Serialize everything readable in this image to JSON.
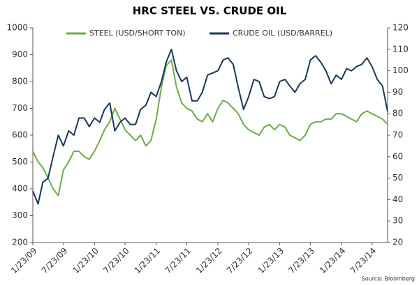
{
  "chart_data": {
    "type": "line",
    "title": "HRC STEEL VS. CRUDE OIL",
    "source": "Source: Bloomberg",
    "x": [
      "2009-01-23",
      "2009-02-23",
      "2009-03-23",
      "2009-04-23",
      "2009-05-23",
      "2009-06-23",
      "2009-07-23",
      "2009-08-23",
      "2009-09-23",
      "2009-10-23",
      "2009-11-23",
      "2009-12-23",
      "2010-01-23",
      "2010-02-23",
      "2010-03-23",
      "2010-04-23",
      "2010-05-23",
      "2010-06-23",
      "2010-07-23",
      "2010-08-23",
      "2010-09-23",
      "2010-10-23",
      "2010-11-23",
      "2010-12-23",
      "2011-01-23",
      "2011-02-23",
      "2011-03-23",
      "2011-04-23",
      "2011-05-23",
      "2011-06-23",
      "2011-07-23",
      "2011-08-23",
      "2011-09-23",
      "2011-10-23",
      "2011-11-23",
      "2011-12-23",
      "2012-01-23",
      "2012-02-23",
      "2012-03-23",
      "2012-04-23",
      "2012-05-23",
      "2012-06-23",
      "2012-07-23",
      "2012-08-23",
      "2012-09-23",
      "2012-10-23",
      "2012-11-23",
      "2012-12-23",
      "2013-01-23",
      "2013-02-23",
      "2013-03-23",
      "2013-04-23",
      "2013-05-23",
      "2013-06-23",
      "2013-07-23",
      "2013-08-23",
      "2013-09-23",
      "2013-10-23",
      "2013-11-23",
      "2013-12-23",
      "2014-01-23",
      "2014-02-23",
      "2014-03-23",
      "2014-04-23",
      "2014-05-23",
      "2014-06-23",
      "2014-07-23",
      "2014-08-23",
      "2014-09-23",
      "2014-10-23"
    ],
    "series": [
      {
        "name": "STEEL (USD/SHORT TON)",
        "color": "#6aad45",
        "axis": "y",
        "values": [
          540,
          500,
          480,
          440,
          400,
          375,
          470,
          500,
          540,
          540,
          520,
          510,
          540,
          580,
          620,
          650,
          700,
          660,
          620,
          600,
          580,
          600,
          560,
          580,
          660,
          780,
          860,
          880,
          780,
          720,
          700,
          690,
          660,
          650,
          680,
          650,
          700,
          730,
          720,
          700,
          680,
          640,
          620,
          610,
          600,
          630,
          640,
          620,
          640,
          630,
          600,
          590,
          580,
          600,
          640,
          650,
          650,
          660,
          660,
          680,
          680,
          670,
          660,
          650,
          680,
          690,
          680,
          670,
          660,
          640
        ]
      },
      {
        "name": "CRUDE OIL (USD/BARREL)",
        "color": "#17375e",
        "axis": "y2",
        "values": [
          44,
          38,
          48,
          50,
          60,
          70,
          65,
          72,
          70,
          78,
          78,
          74,
          78,
          76,
          82,
          85,
          72,
          76,
          78,
          75,
          75,
          82,
          84,
          90,
          88,
          95,
          104,
          110,
          100,
          95,
          97,
          86,
          86,
          90,
          98,
          99,
          100,
          105,
          106,
          103,
          92,
          82,
          88,
          96,
          95,
          88,
          87,
          88,
          95,
          96,
          93,
          90,
          94,
          96,
          105,
          107,
          104,
          100,
          94,
          98,
          96,
          101,
          100,
          102,
          103,
          106,
          102,
          96,
          93,
          81
        ]
      }
    ],
    "xlim": [
      "2009-01-23",
      "2014-10-23"
    ],
    "xticks": [
      {
        "value": "2009-01-23",
        "label": "1/23/09"
      },
      {
        "value": "2009-07-23",
        "label": "7/23/09"
      },
      {
        "value": "2010-01-23",
        "label": "1/23/10"
      },
      {
        "value": "2010-07-23",
        "label": "7/23/10"
      },
      {
        "value": "2011-01-23",
        "label": "1/23/11"
      },
      {
        "value": "2011-07-23",
        "label": "7/23/11"
      },
      {
        "value": "2012-01-23",
        "label": "1/23/12"
      },
      {
        "value": "2012-07-23",
        "label": "7/23/12"
      },
      {
        "value": "2013-01-23",
        "label": "1/23/13"
      },
      {
        "value": "2013-07-23",
        "label": "7/23/13"
      },
      {
        "value": "2014-01-23",
        "label": "1/23/14"
      },
      {
        "value": "2014-07-23",
        "label": "7/23/14"
      }
    ],
    "ylim": [
      200,
      1000
    ],
    "yticks": [
      200,
      300,
      400,
      500,
      600,
      700,
      800,
      900,
      1000
    ],
    "y2lim": [
      20,
      120
    ],
    "y2ticks": [
      20,
      30,
      40,
      50,
      60,
      70,
      80,
      90,
      100,
      110,
      120
    ],
    "legend": "top"
  }
}
